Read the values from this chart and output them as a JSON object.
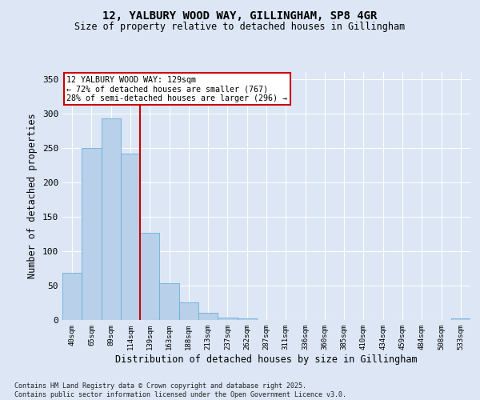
{
  "title_line1": "12, YALBURY WOOD WAY, GILLINGHAM, SP8 4GR",
  "title_line2": "Size of property relative to detached houses in Gillingham",
  "xlabel": "Distribution of detached houses by size in Gillingham",
  "ylabel": "Number of detached properties",
  "categories": [
    "40sqm",
    "65sqm",
    "89sqm",
    "114sqm",
    "139sqm",
    "163sqm",
    "188sqm",
    "213sqm",
    "237sqm",
    "262sqm",
    "287sqm",
    "311sqm",
    "336sqm",
    "360sqm",
    "385sqm",
    "410sqm",
    "434sqm",
    "459sqm",
    "484sqm",
    "508sqm",
    "533sqm"
  ],
  "values": [
    68,
    250,
    293,
    241,
    127,
    53,
    25,
    10,
    4,
    2,
    0,
    0,
    0,
    0,
    0,
    0,
    0,
    0,
    0,
    0,
    2
  ],
  "bar_color": "#b8d0ea",
  "bar_edgecolor": "#6aaed6",
  "red_line_x": 3.5,
  "red_line_color": "#cc0000",
  "annotation_text": "12 YALBURY WOOD WAY: 129sqm\n← 72% of detached houses are smaller (767)\n28% of semi-detached houses are larger (296) →",
  "annotation_box_color": "#ffffff",
  "annotation_box_edgecolor": "#cc0000",
  "ylim": [
    0,
    360
  ],
  "yticks": [
    0,
    50,
    100,
    150,
    200,
    250,
    300,
    350
  ],
  "background_color": "#dce6f5",
  "grid_color": "#ffffff",
  "footnote": "Contains HM Land Registry data © Crown copyright and database right 2025.\nContains public sector information licensed under the Open Government Licence v3.0."
}
